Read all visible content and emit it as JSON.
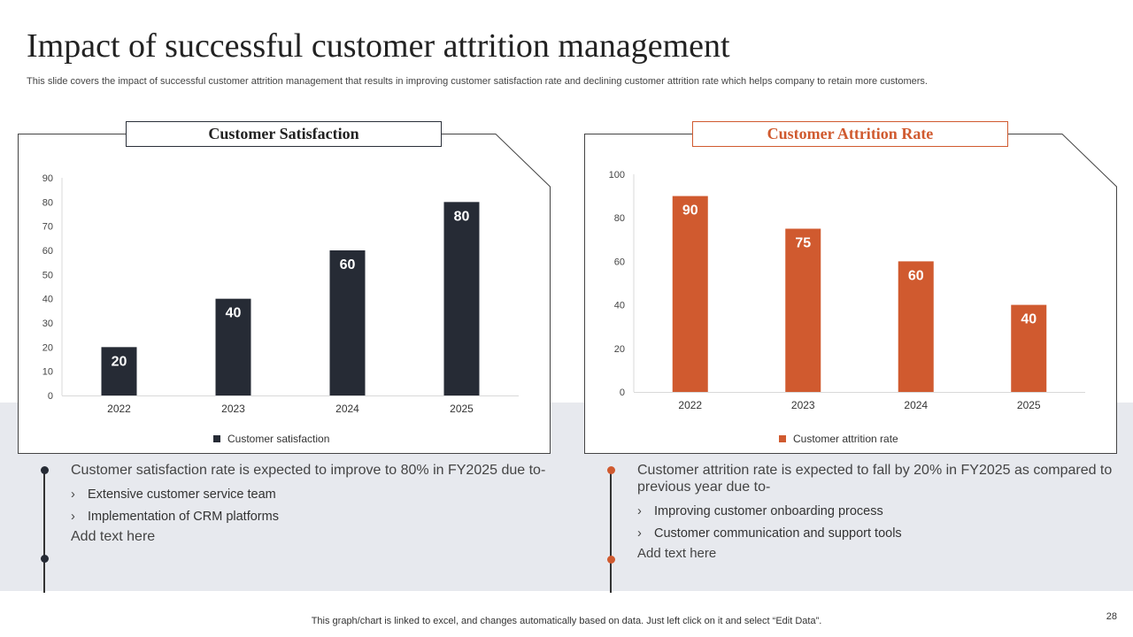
{
  "title": "Impact of successful customer attrition management",
  "subtitle": "This slide covers the impact of successful customer attrition management that results in improving customer satisfaction rate and declining customer attrition rate which helps company to retain more customers.",
  "colors": {
    "dark": "#262b35",
    "orange": "#d05a2f",
    "band": "#e7e9ee"
  },
  "left_panel": {
    "title": "Customer Satisfaction",
    "legend": "Customer satisfaction",
    "bullet_main": "Customer satisfaction rate is expected to improve to 80% in FY2025 due to-",
    "sub_items": [
      "Extensive customer service team",
      "Implementation of CRM platforms"
    ],
    "add_text": "Add text here"
  },
  "right_panel": {
    "title": "Customer Attrition Rate",
    "legend": "Customer attrition rate",
    "bullet_main": "Customer attrition rate is expected to fall by 20% in FY2025 as compared to previous year due to-",
    "sub_items": [
      "Improving customer onboarding process",
      "Customer communication and support tools"
    ],
    "add_text": "Add text here"
  },
  "chart_data": [
    {
      "type": "bar",
      "title": "Customer Satisfaction",
      "categories": [
        "2022",
        "2023",
        "2024",
        "2025"
      ],
      "series": [
        {
          "name": "Customer satisfaction",
          "values": [
            20,
            40,
            60,
            80
          ]
        }
      ],
      "ylim": [
        0,
        90
      ],
      "yticks": [
        0,
        10,
        20,
        30,
        40,
        50,
        60,
        70,
        80,
        90
      ],
      "legend": "bottom-center"
    },
    {
      "type": "bar",
      "title": "Customer Attrition Rate",
      "categories": [
        "2022",
        "2023",
        "2024",
        "2025"
      ],
      "series": [
        {
          "name": "Customer attrition rate",
          "values": [
            90,
            75,
            60,
            40
          ]
        }
      ],
      "ylim": [
        0,
        100
      ],
      "yticks": [
        0,
        20,
        40,
        60,
        80,
        100
      ],
      "legend": "bottom-center"
    }
  ],
  "footer": "This graph/chart is linked to excel,  and changes automatically based on data. Just left click on it and select “Edit Data”.",
  "page_number": "28"
}
